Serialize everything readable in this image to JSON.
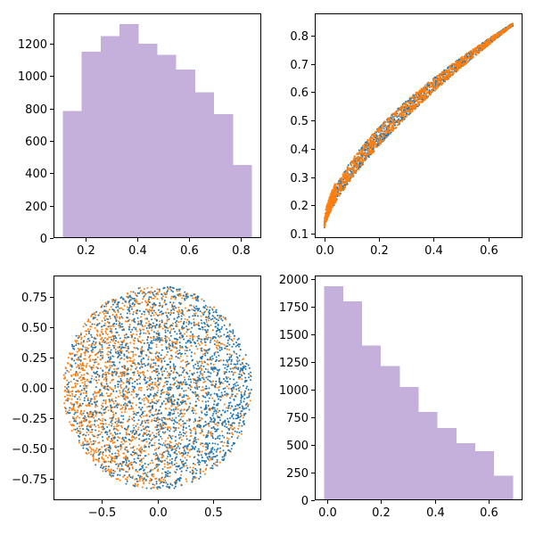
{
  "chart_data": [
    {
      "id": "hist-top-left",
      "type": "bar",
      "subtype": "histogram",
      "title": "",
      "xlabel": "",
      "ylabel": "",
      "bin_edges": [
        0.113,
        0.186,
        0.259,
        0.332,
        0.405,
        0.478,
        0.551,
        0.624,
        0.697,
        0.77,
        0.843
      ],
      "values": [
        785,
        1150,
        1245,
        1320,
        1200,
        1130,
        1040,
        900,
        765,
        450
      ],
      "xlim": [
        0.077,
        0.879
      ],
      "ylim": [
        0,
        1386
      ],
      "xticks": [
        0.2,
        0.4,
        0.6,
        0.8
      ],
      "xtick_labels": [
        "0.2",
        "0.4",
        "0.6",
        "0.8"
      ],
      "yticks": [
        0,
        200,
        400,
        600,
        800,
        1000,
        1200
      ],
      "ytick_labels": [
        "0",
        "200",
        "400",
        "600",
        "800",
        "1000",
        "1200"
      ],
      "color": "#c5b0dc",
      "grid": false,
      "legend": "none"
    },
    {
      "id": "scatter-top-right",
      "type": "scatter",
      "title": "",
      "xlabel": "",
      "ylabel": "",
      "description_shape": "curved band from near (0, 0.12) to (0.69, 0.84)",
      "series": [
        {
          "color": "#1f77b4",
          "x_range": [
            0.0,
            0.69
          ],
          "y_range": [
            0.12,
            0.84
          ]
        },
        {
          "color": "#ff7f0e",
          "x_range": [
            0.0,
            0.69
          ],
          "y_range": [
            0.12,
            0.84
          ]
        }
      ],
      "xlim": [
        -0.035,
        0.725
      ],
      "ylim": [
        0.084,
        0.879
      ],
      "xticks": [
        0.0,
        0.2,
        0.4,
        0.6
      ],
      "xtick_labels": [
        "0.0",
        "0.2",
        "0.4",
        "0.6"
      ],
      "yticks": [
        0.1,
        0.2,
        0.3,
        0.4,
        0.5,
        0.6,
        0.7,
        0.8
      ],
      "ytick_labels": [
        "0.1",
        "0.2",
        "0.3",
        "0.4",
        "0.5",
        "0.6",
        "0.7",
        "0.8"
      ],
      "grid": false,
      "legend": "none"
    },
    {
      "id": "scatter-bottom-left",
      "type": "scatter",
      "title": "",
      "xlabel": "",
      "ylabel": "",
      "description_shape": "filled disk of radius ~0.84 centered at (0, 0)",
      "series": [
        {
          "color": "#1f77b4",
          "x_range": [
            -0.84,
            0.84
          ],
          "y_range": [
            -0.84,
            0.84
          ]
        },
        {
          "color": "#ff7f0e",
          "x_range": [
            -0.84,
            0.84
          ],
          "y_range": [
            -0.84,
            0.84
          ]
        }
      ],
      "xlim": [
        -0.925,
        0.925
      ],
      "ylim": [
        -0.925,
        0.925
      ],
      "xticks": [
        -0.5,
        0.0,
        0.5
      ],
      "xtick_labels": [
        "−0.5",
        "0.0",
        "0.5"
      ],
      "yticks": [
        -0.75,
        -0.5,
        -0.25,
        0.0,
        0.25,
        0.5,
        0.75
      ],
      "ytick_labels": [
        "−0.75",
        "−0.50",
        "−0.25",
        "0.00",
        "0.25",
        "0.50",
        "0.75"
      ],
      "grid": false,
      "legend": "none"
    },
    {
      "id": "hist-bottom-right",
      "type": "bar",
      "subtype": "histogram",
      "title": "",
      "xlabel": "",
      "ylabel": "",
      "bin_edges": [
        -0.01,
        0.06,
        0.13,
        0.2,
        0.27,
        0.34,
        0.41,
        0.48,
        0.55,
        0.62,
        0.69
      ],
      "values": [
        1935,
        1800,
        1400,
        1215,
        1025,
        800,
        655,
        515,
        445,
        220
      ],
      "xlim": [
        -0.045,
        0.725
      ],
      "ylim": [
        0,
        2032
      ],
      "xticks": [
        0.0,
        0.2,
        0.4,
        0.6
      ],
      "xtick_labels": [
        "0.0",
        "0.2",
        "0.4",
        "0.6"
      ],
      "yticks": [
        0,
        250,
        500,
        750,
        1000,
        1250,
        1500,
        1750,
        2000
      ],
      "ytick_labels": [
        "0",
        "250",
        "500",
        "750",
        "1000",
        "1250",
        "1500",
        "1750",
        "2000"
      ],
      "color": "#c5b0dc",
      "grid": false,
      "legend": "none"
    }
  ]
}
